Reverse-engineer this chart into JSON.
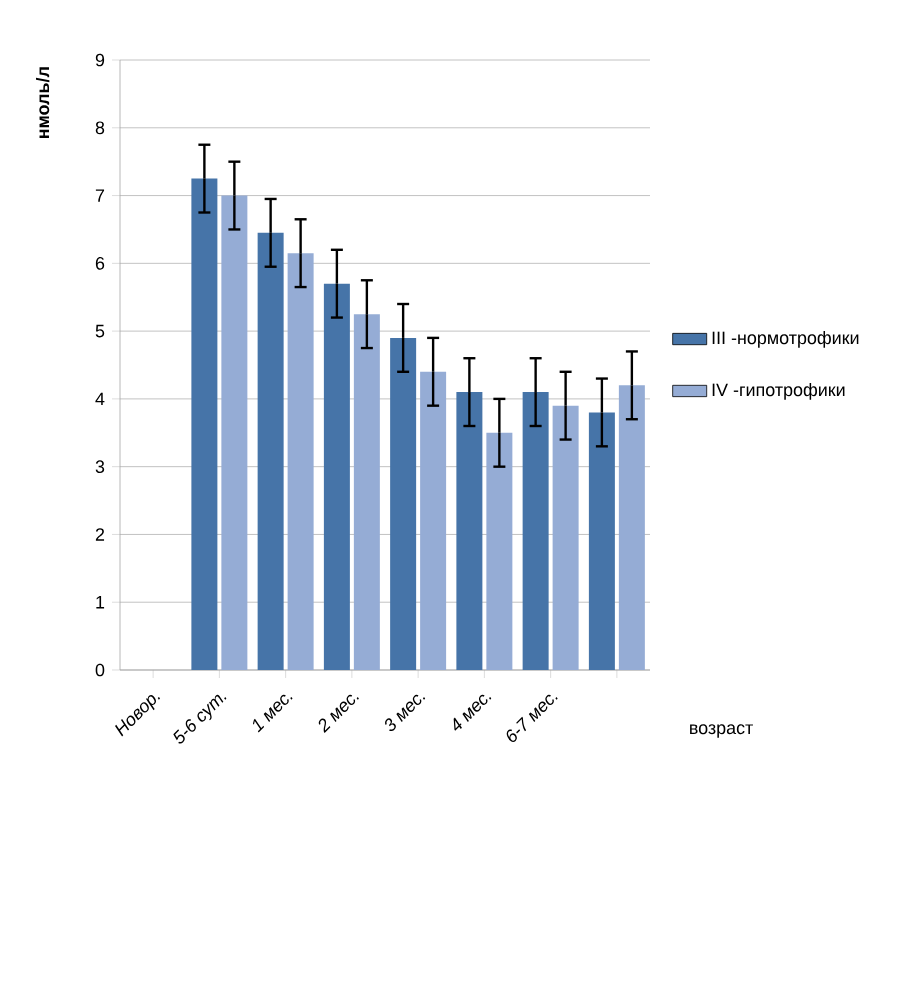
{
  "chart_data": {
    "type": "bar",
    "ylabel": "нмоль/л",
    "xlabel": "возраст",
    "categories": [
      "Новор.",
      "5-6 сут.",
      "1 мес.",
      "2 мес.",
      "3 мес.",
      "4 мес.",
      "6-7 мес.",
      null
    ],
    "series": [
      {
        "name": "III -нормотрофики",
        "color": "#4674a8",
        "values": [
          null,
          7.25,
          6.45,
          5.7,
          4.9,
          4.1,
          4.1,
          3.8
        ],
        "errors": [
          null,
          0.5,
          0.5,
          0.5,
          0.5,
          0.5,
          0.5,
          0.5
        ]
      },
      {
        "name": "IV -гипотрофики",
        "color": "#95acd5",
        "values": [
          null,
          7.0,
          6.15,
          5.25,
          4.4,
          3.5,
          3.9,
          4.2
        ],
        "errors": [
          null,
          0.5,
          0.5,
          0.5,
          0.5,
          0.5,
          0.5,
          0.5
        ]
      }
    ],
    "ylim": [
      0,
      9
    ],
    "yticks": [
      0,
      1,
      2,
      3,
      4,
      5,
      6,
      7,
      8,
      9
    ],
    "grid": "y",
    "legend": "right"
  }
}
